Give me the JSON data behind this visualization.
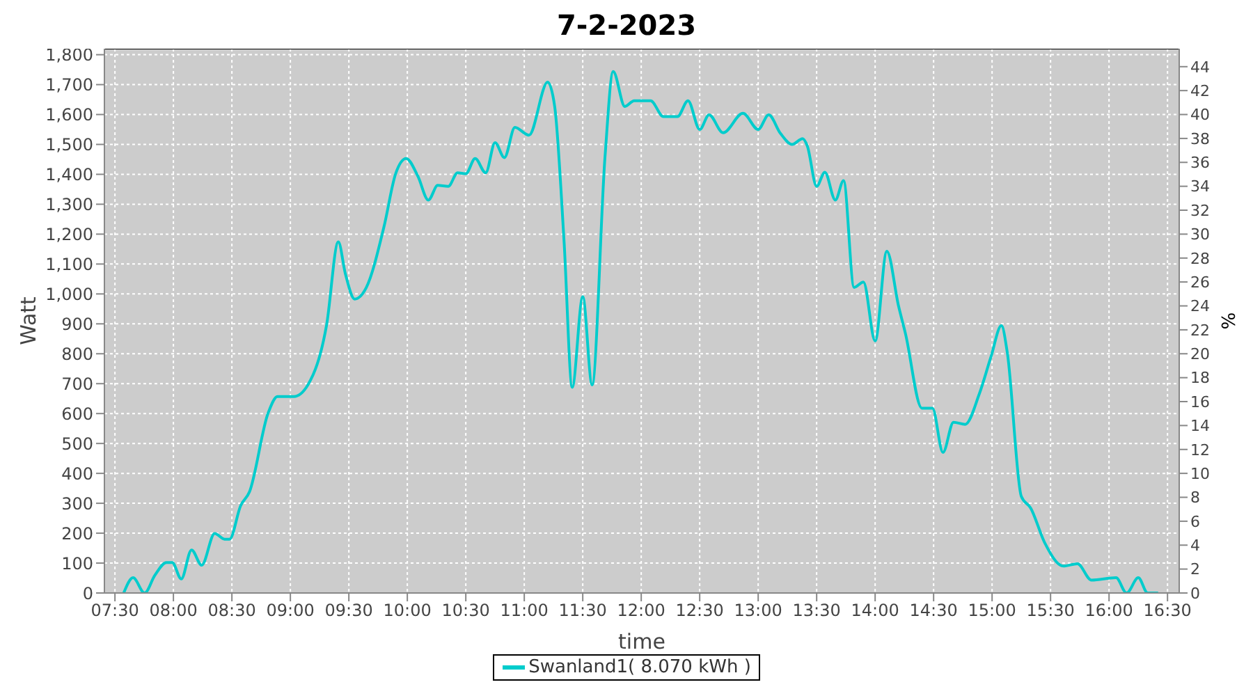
{
  "chart_data": {
    "type": "line",
    "title": "7-2-2023",
    "xlabel": "time",
    "ylabel": "Watt",
    "y2label": "%",
    "x": [
      7.575,
      7.655,
      7.754,
      7.841,
      7.94,
      7.99,
      8.067,
      8.155,
      8.242,
      8.353,
      8.437,
      8.48,
      8.575,
      8.65,
      8.81,
      8.89,
      9.03,
      9.15,
      9.31,
      9.41,
      9.47,
      9.55,
      9.65,
      9.8,
      9.9,
      9.99,
      10.09,
      10.18,
      10.26,
      10.35,
      10.43,
      10.5,
      10.58,
      10.67,
      10.75,
      10.83,
      10.92,
      11.04,
      11.2,
      11.26,
      11.34,
      11.41,
      11.5,
      11.58,
      11.69,
      11.76,
      11.86,
      11.94,
      12.08,
      12.19,
      12.31,
      12.4,
      12.5,
      12.58,
      12.7,
      12.87,
      13.0,
      13.09,
      13.19,
      13.29,
      13.38,
      13.42,
      13.5,
      13.57,
      13.66,
      13.73,
      13.82,
      13.9,
      14.0,
      14.1,
      14.2,
      14.26,
      14.4,
      14.49,
      14.58,
      14.67,
      14.77,
      14.89,
      14.99,
      15.08,
      15.13,
      15.25,
      15.33,
      15.45,
      15.61,
      15.73,
      15.85,
      16.06,
      16.15,
      16.25,
      16.33,
      16.42
    ],
    "series": [
      {
        "name": "Swanland1( 8.070 kWh )",
        "color": "#00cccc",
        "values": [
          0,
          51,
          0,
          59,
          102,
          102,
          47,
          144,
          93,
          199,
          180,
          180,
          292,
          338,
          602,
          657,
          657,
          696,
          897,
          1174,
          1068,
          983,
          1022,
          1224,
          1402,
          1453,
          1394,
          1314,
          1363,
          1360,
          1405,
          1402,
          1453,
          1405,
          1506,
          1456,
          1557,
          1531,
          1708,
          1627,
          1177,
          688,
          991,
          696,
          1457,
          1744,
          1627,
          1646,
          1646,
          1593,
          1593,
          1646,
          1550,
          1599,
          1539,
          1604,
          1550,
          1599,
          1537,
          1500,
          1519,
          1495,
          1360,
          1407,
          1314,
          1379,
          1022,
          1040,
          843,
          1143,
          960,
          866,
          618,
          618,
          470,
          571,
          564,
          665,
          789,
          894,
          804,
          323,
          284,
          168,
          90,
          98,
          43,
          51,
          0,
          51,
          0,
          0
        ]
      }
    ],
    "xlim": [
      7.41,
      16.6
    ],
    "xticks": [
      {
        "value": 7.5,
        "label": "07:30"
      },
      {
        "value": 8,
        "label": "08:00"
      },
      {
        "value": 8.5,
        "label": "08:30"
      },
      {
        "value": 9,
        "label": "09:00"
      },
      {
        "value": 9.5,
        "label": "09:30"
      },
      {
        "value": 10,
        "label": "10:00"
      },
      {
        "value": 10.5,
        "label": "10:30"
      },
      {
        "value": 11,
        "label": "11:00"
      },
      {
        "value": 11.5,
        "label": "11:30"
      },
      {
        "value": 12,
        "label": "12:00"
      },
      {
        "value": 12.5,
        "label": "12:30"
      },
      {
        "value": 13,
        "label": "13:00"
      },
      {
        "value": 13.5,
        "label": "13:30"
      },
      {
        "value": 14,
        "label": "14:00"
      },
      {
        "value": 14.5,
        "label": "14:30"
      },
      {
        "value": 15,
        "label": "15:00"
      },
      {
        "value": 15.5,
        "label": "15:30"
      },
      {
        "value": 16,
        "label": "16:00"
      },
      {
        "value": 16.5,
        "label": "16:30"
      }
    ],
    "ylim": [
      0,
      1820
    ],
    "yticks": [
      0,
      100,
      200,
      300,
      400,
      500,
      600,
      700,
      800,
      900,
      {
        "value": 1000,
        "label": "1,000"
      },
      {
        "value": 1100,
        "label": "1,100"
      },
      {
        "value": 1200,
        "label": "1,200"
      },
      {
        "value": 1300,
        "label": "1,300"
      },
      {
        "value": 1400,
        "label": "1,400"
      },
      {
        "value": 1500,
        "label": "1,500"
      },
      {
        "value": 1600,
        "label": "1,600"
      },
      {
        "value": 1700,
        "label": "1,700"
      },
      {
        "value": 1800,
        "label": "1,800"
      }
    ],
    "y2lim": [
      0,
      45.5
    ],
    "y2ticks": [
      0,
      2,
      4,
      6,
      8,
      10,
      12,
      14,
      16,
      18,
      20,
      22,
      24,
      26,
      28,
      30,
      32,
      34,
      36,
      38,
      40,
      42,
      44
    ],
    "grid": true,
    "legend": "bottom",
    "marker": "none",
    "line_style": "solid"
  }
}
